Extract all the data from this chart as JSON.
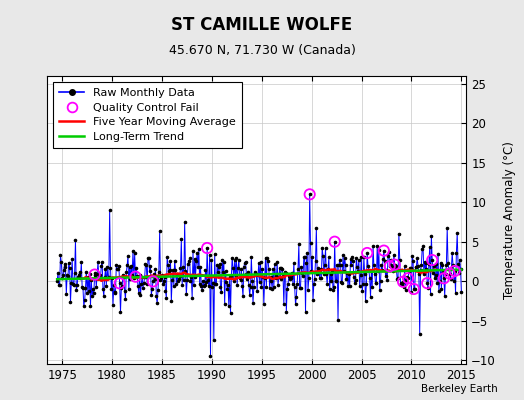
{
  "title": "ST CAMILLE WOLFE",
  "subtitle": "45.670 N, 71.730 W (Canada)",
  "ylabel": "Temperature Anomaly (°C)",
  "watermark": "Berkeley Earth",
  "xlim": [
    1973.5,
    2015.5
  ],
  "ylim": [
    -10.5,
    26
  ],
  "yticks": [
    -10,
    -5,
    0,
    5,
    10,
    15,
    20,
    25
  ],
  "xticks": [
    1975,
    1980,
    1985,
    1990,
    1995,
    2000,
    2005,
    2010,
    2015
  ],
  "plot_bg_color": "#ffffff",
  "fig_bg_color": "#e8e8e8",
  "line_color": "#0000ff",
  "dot_color": "#000000",
  "ma_color": "#ff0000",
  "trend_color": "#00cc00",
  "qc_color": "#ff00ff",
  "title_fontsize": 12,
  "subtitle_fontsize": 9,
  "legend_fontsize": 8,
  "seed": 12345
}
